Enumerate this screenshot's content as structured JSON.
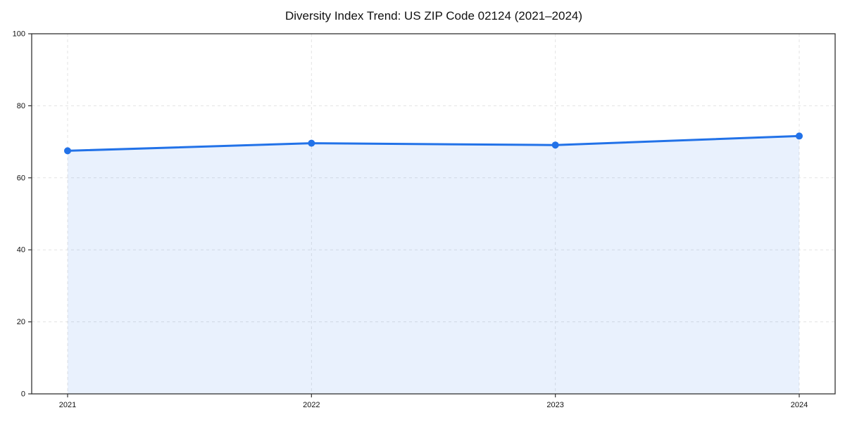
{
  "chart_data": {
    "type": "area",
    "title": "Diversity Index Trend: US ZIP Code 02124 (2021–2024)",
    "categories": [
      "2021",
      "2022",
      "2023",
      "2024"
    ],
    "series": [
      {
        "name": "Diversity Index",
        "values": [
          67.5,
          69.6,
          69.1,
          71.6
        ]
      }
    ],
    "xlabel": "",
    "ylabel": "",
    "ylim": [
      0,
      100
    ],
    "yticks": [
      0,
      20,
      40,
      60,
      80,
      100
    ],
    "grid": true,
    "grid_style": "dashed",
    "legend": false,
    "marker": "circle",
    "colors": {
      "line": "#2272e8",
      "marker": "#2272e8",
      "fill": "#2673e8",
      "fill_opacity": 0.1,
      "grid": "#e3e3e3",
      "axis": "#333333",
      "text": "#111111"
    }
  }
}
